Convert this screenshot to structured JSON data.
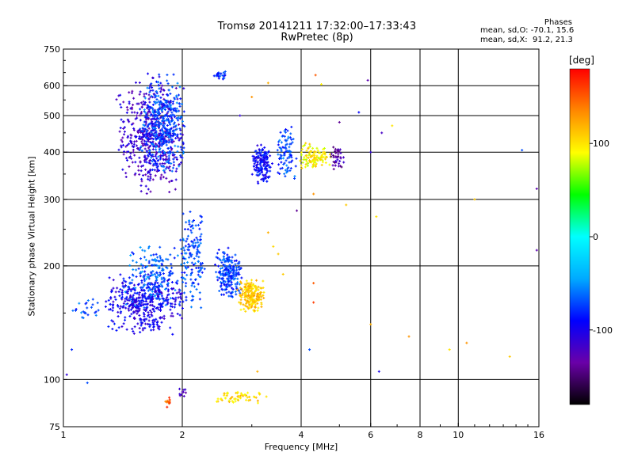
{
  "chart_data": {
    "type": "scatter",
    "title": "Tromsø 20141211 17:32:00–17:33:43",
    "subtitle": "RwPretec (8p)",
    "xlabel": "Frequency [MHz]",
    "ylabel": "Stationary phase Virtual Height [km]",
    "x_scale": "log",
    "y_scale": "log",
    "xlim": [
      1,
      16
    ],
    "ylim": [
      75,
      750
    ],
    "x_ticks": [
      1,
      2,
      4,
      6,
      8,
      10,
      16
    ],
    "x_tick_labels": [
      "1",
      "2",
      "4",
      "6",
      "8",
      "10",
      "16"
    ],
    "x_gridlines": [
      2,
      4,
      6,
      8,
      10
    ],
    "y_ticks": [
      75,
      100,
      200,
      300,
      400,
      500,
      600,
      750
    ],
    "y_tick_labels": [
      "75",
      "100",
      "200",
      "300",
      "400",
      "500",
      "600",
      "750"
    ],
    "y_gridlines": [
      100,
      200,
      300,
      400,
      500,
      600
    ],
    "grid": true,
    "phases": {
      "title": "Phases",
      "o_line": "mean, sd,O: -70.1, 15.6",
      "x_line": "mean, sd,X:  91.2, 21.3"
    },
    "colorbar": {
      "label": "[deg]",
      "min": -180,
      "max": 180,
      "ticks": [
        100,
        0,
        -100
      ],
      "tick_labels": [
        "100",
        "0",
        "-100"
      ],
      "colormap": [
        "#000000",
        "#6a00a8",
        "#0000ff",
        "#00aaff",
        "#00ffff",
        "#00ff00",
        "#ffff00",
        "#ff8800",
        "#ff0000"
      ]
    },
    "clusters": [
      {
        "name": "",
        "f": [
          1.35,
          2.05
        ],
        "h": [
          300,
          655
        ],
        "phase": -115,
        "count": 520
      },
      {
        "name": "",
        "f": [
          1.55,
          2.05
        ],
        "h": [
          340,
          650
        ],
        "phase": -70,
        "count": 380
      },
      {
        "name": "",
        "f": [
          2.4,
          2.6
        ],
        "h": [
          620,
          660
        ],
        "phase": -80,
        "count": 25
      },
      {
        "name": "",
        "f": [
          3.0,
          3.4
        ],
        "h": [
          330,
          420
        ],
        "phase": -90,
        "count": 150
      },
      {
        "name": "",
        "f": [
          3.45,
          3.9
        ],
        "h": [
          330,
          470
        ],
        "phase": -70,
        "count": 90
      },
      {
        "name": "",
        "f": [
          3.9,
          4.8
        ],
        "h": [
          355,
          425
        ],
        "phase": 95,
        "count": 110
      },
      {
        "name": "",
        "f": [
          4.7,
          5.2
        ],
        "h": [
          360,
          415
        ],
        "phase": -130,
        "count": 40
      },
      {
        "name": "",
        "f": [
          1.05,
          1.25
        ],
        "h": [
          140,
          165
        ],
        "phase": -70,
        "count": 25
      },
      {
        "name": "",
        "f": [
          1.25,
          2.05
        ],
        "h": [
          130,
          195
        ],
        "phase": -100,
        "count": 420
      },
      {
        "name": "",
        "f": [
          1.4,
          2.05
        ],
        "h": [
          150,
          230
        ],
        "phase": -65,
        "count": 180
      },
      {
        "name": "",
        "f": [
          1.95,
          2.3
        ],
        "h": [
          150,
          290
        ],
        "phase": -70,
        "count": 150
      },
      {
        "name": "",
        "f": [
          2.4,
          2.85
        ],
        "h": [
          160,
          225
        ],
        "phase": -75,
        "count": 210
      },
      {
        "name": "",
        "f": [
          2.75,
          3.25
        ],
        "h": [
          150,
          185
        ],
        "phase": 110,
        "count": 200
      },
      {
        "name": "",
        "f": [
          2.3,
          3.3
        ],
        "h": [
          86,
          93
        ],
        "phase": 105,
        "count": 60
      },
      {
        "name": "",
        "f": [
          1.8,
          1.9
        ],
        "h": [
          84,
          90
        ],
        "phase": 150,
        "count": 12
      },
      {
        "name": "",
        "f": [
          1.95,
          2.05
        ],
        "h": [
          90,
          95
        ],
        "phase": -130,
        "count": 10
      }
    ],
    "outliers": [
      {
        "f": 4.35,
        "h": 640,
        "phase": 150
      },
      {
        "f": 4.5,
        "h": 605,
        "phase": 95
      },
      {
        "f": 3.3,
        "h": 610,
        "phase": 120
      },
      {
        "f": 3.0,
        "h": 560,
        "phase": 130
      },
      {
        "f": 2.8,
        "h": 500,
        "phase": -110
      },
      {
        "f": 5.9,
        "h": 620,
        "phase": -130
      },
      {
        "f": 5.6,
        "h": 510,
        "phase": -90
      },
      {
        "f": 5.0,
        "h": 480,
        "phase": -140
      },
      {
        "f": 3.9,
        "h": 280,
        "phase": -140
      },
      {
        "f": 4.3,
        "h": 310,
        "phase": 130
      },
      {
        "f": 5.2,
        "h": 290,
        "phase": 110
      },
      {
        "f": 6.2,
        "h": 270,
        "phase": 100
      },
      {
        "f": 3.4,
        "h": 225,
        "phase": 105
      },
      {
        "f": 3.5,
        "h": 215,
        "phase": 110
      },
      {
        "f": 3.3,
        "h": 245,
        "phase": 120
      },
      {
        "f": 4.3,
        "h": 180,
        "phase": 150
      },
      {
        "f": 4.3,
        "h": 160,
        "phase": 160
      },
      {
        "f": 4.2,
        "h": 120,
        "phase": -70
      },
      {
        "f": 6.0,
        "h": 140,
        "phase": 120
      },
      {
        "f": 6.3,
        "h": 105,
        "phase": -100
      },
      {
        "f": 7.5,
        "h": 130,
        "phase": 130
      },
      {
        "f": 9.5,
        "h": 120,
        "phase": 100
      },
      {
        "f": 10.5,
        "h": 125,
        "phase": 130
      },
      {
        "f": 13.5,
        "h": 115,
        "phase": 110
      },
      {
        "f": 15.8,
        "h": 220,
        "phase": -130
      },
      {
        "f": 15.8,
        "h": 320,
        "phase": -130
      },
      {
        "f": 14.5,
        "h": 405,
        "phase": -70
      },
      {
        "f": 11.0,
        "h": 300,
        "phase": 110
      },
      {
        "f": 6.4,
        "h": 450,
        "phase": -120
      },
      {
        "f": 6.0,
        "h": 400,
        "phase": -110
      },
      {
        "f": 1.05,
        "h": 120,
        "phase": -80
      },
      {
        "f": 1.15,
        "h": 98,
        "phase": -70
      },
      {
        "f": 1.02,
        "h": 103,
        "phase": -110
      },
      {
        "f": 3.1,
        "h": 105,
        "phase": 120
      },
      {
        "f": 6.8,
        "h": 470,
        "phase": 100
      },
      {
        "f": 3.6,
        "h": 190,
        "phase": 110
      }
    ]
  }
}
